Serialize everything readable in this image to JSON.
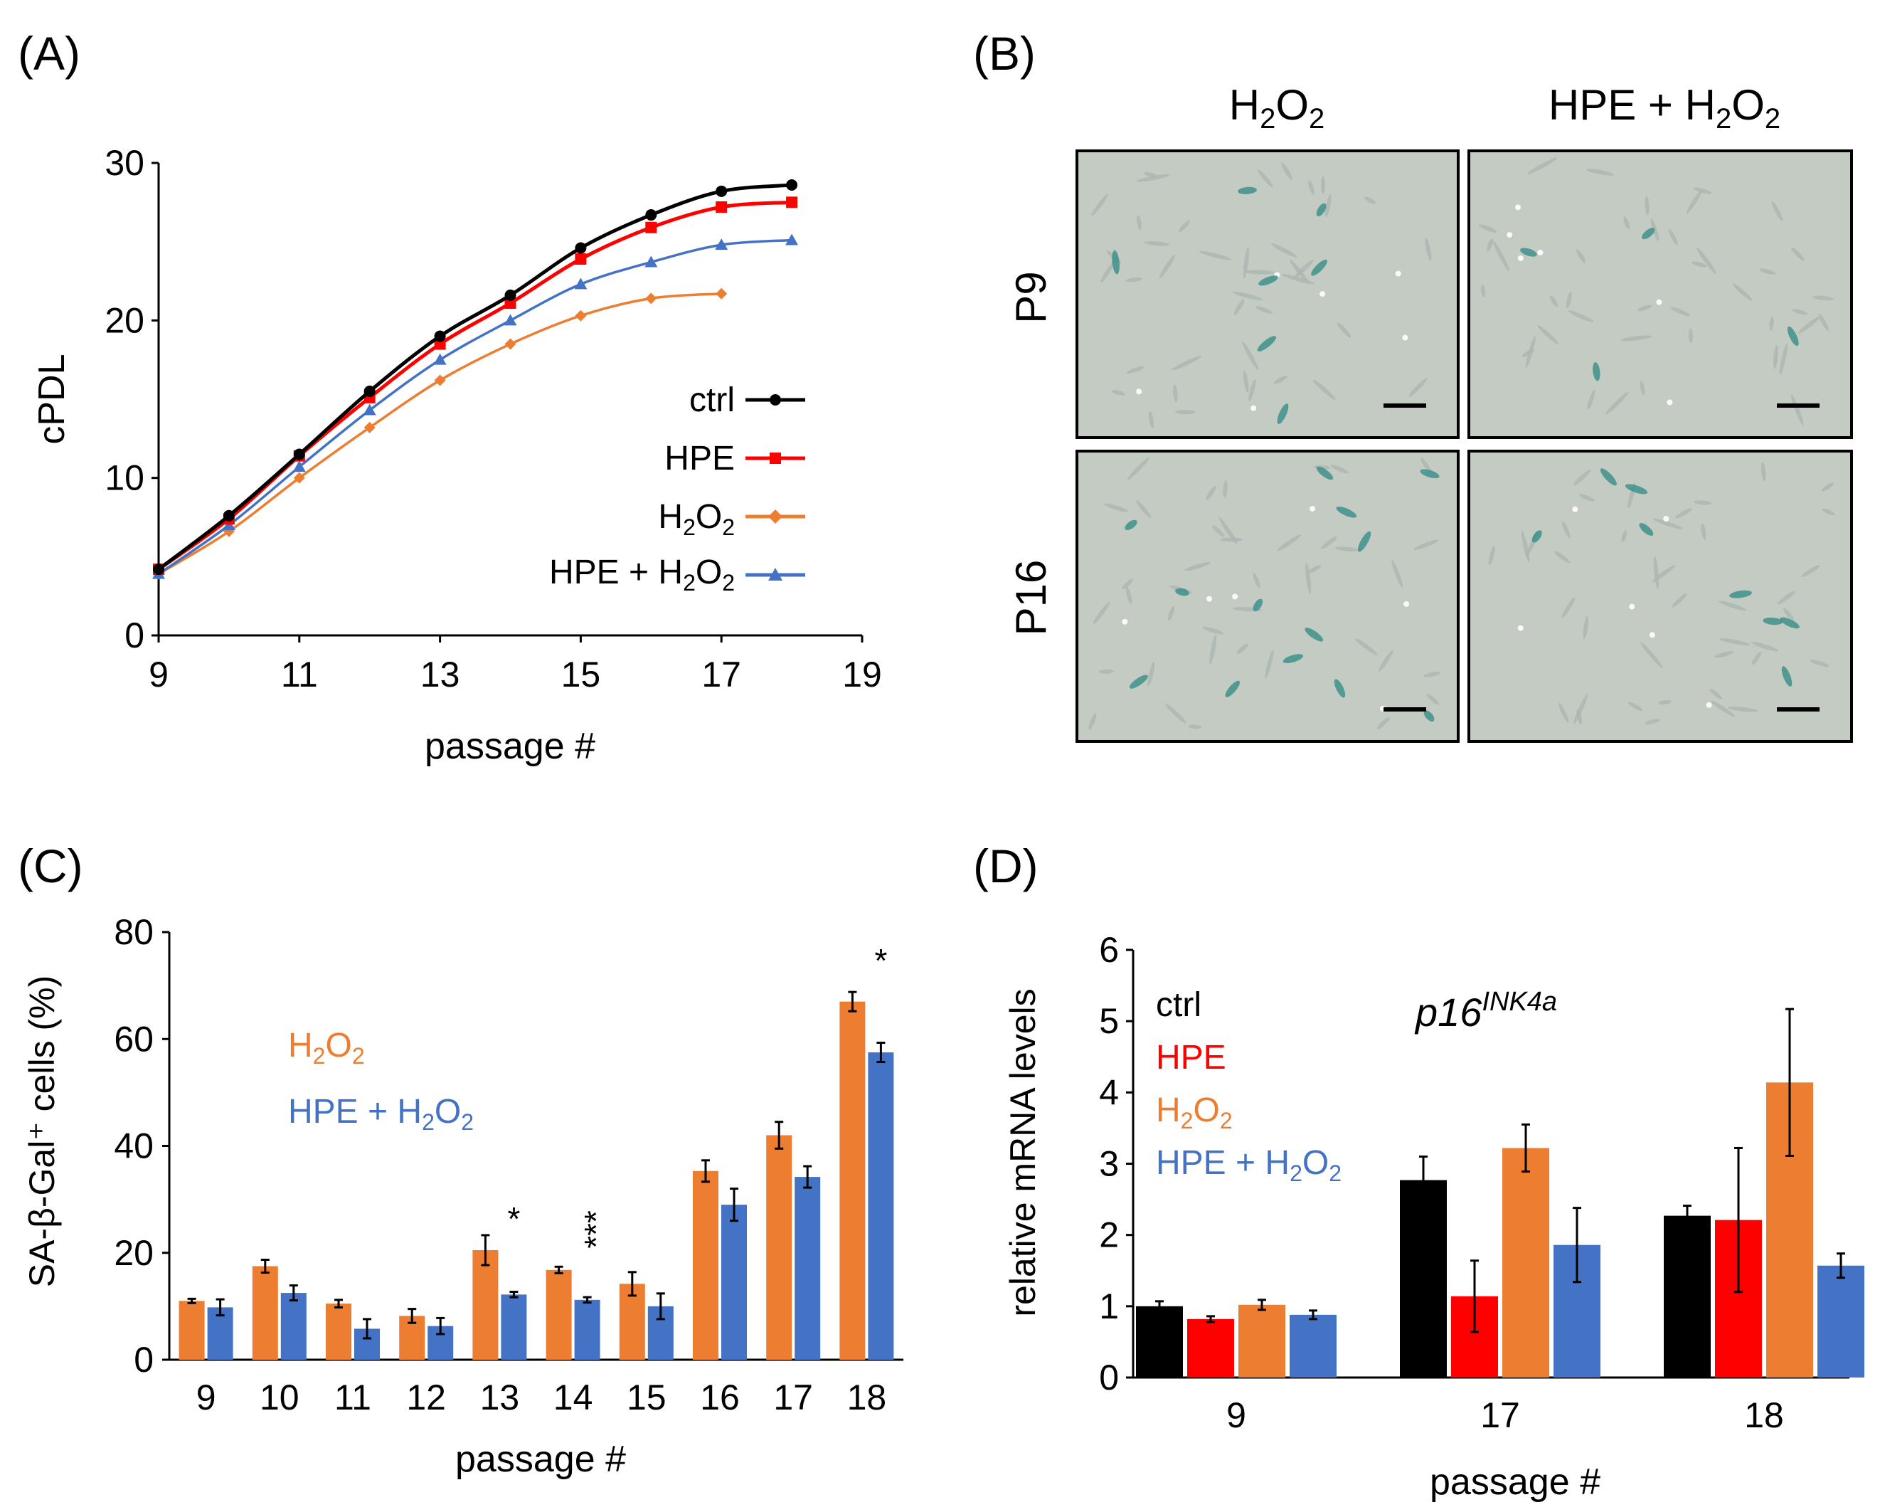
{
  "panels": {
    "A": {
      "label": "(A)",
      "chart_data": {
        "type": "line",
        "title": "",
        "xlabel": "passage #",
        "ylabel": "cPDL",
        "xlim": [
          9,
          19
        ],
        "ylim": [
          0,
          30
        ],
        "x_ticks": [
          "9",
          "11",
          "13",
          "15",
          "17",
          "19"
        ],
        "y_ticks": [
          "0",
          "10",
          "20",
          "30"
        ],
        "series": [
          {
            "name": "ctrl",
            "color": "#000000",
            "marker": "circle",
            "x": [
              9,
              10,
              11,
              12,
              13,
              14,
              15,
              16,
              17,
              18
            ],
            "y": [
              4.2,
              7.6,
              11.5,
              15.5,
              19.0,
              21.6,
              24.6,
              26.7,
              28.2,
              28.6
            ]
          },
          {
            "name": "HPE",
            "color": "#FF0000",
            "marker": "square",
            "x": [
              9,
              10,
              11,
              12,
              13,
              14,
              15,
              16,
              17,
              18
            ],
            "y": [
              4.2,
              7.4,
              11.4,
              15.1,
              18.5,
              21.1,
              23.9,
              25.9,
              27.2,
              27.5
            ]
          },
          {
            "name": "H2O2",
            "label_base": "H",
            "label_sub1": "2",
            "label_mid": "O",
            "label_sub2": "2",
            "color": "#ED7D31",
            "marker": "diamond",
            "x": [
              9,
              10,
              11,
              12,
              13,
              14,
              15,
              16,
              17
            ],
            "y": [
              3.9,
              6.6,
              10.0,
              13.2,
              16.2,
              18.5,
              20.3,
              21.4,
              21.7
            ]
          },
          {
            "name": "HPE + H2O2",
            "label_base": "HPE + H",
            "label_sub1": "2",
            "label_mid": "O",
            "label_sub2": "2",
            "color": "#4472C4",
            "marker": "triangle",
            "x": [
              9,
              10,
              11,
              12,
              13,
              14,
              15,
              16,
              17,
              18
            ],
            "y": [
              3.9,
              7.0,
              10.7,
              14.3,
              17.5,
              20.0,
              22.3,
              23.7,
              24.8,
              25.1
            ]
          }
        ],
        "legend_position": "right-lower"
      }
    },
    "B": {
      "label": "(B)",
      "col_headers": [
        {
          "base": "H",
          "sub1": "2",
          "mid": "O",
          "sub2": "2"
        },
        {
          "base": "HPE + H",
          "sub1": "2",
          "mid": "O",
          "sub2": "2"
        }
      ],
      "row_headers": [
        "P9",
        "P16"
      ],
      "micrographs": [
        "P9 H2O2 SA-β-Gal stain",
        "P9 HPE + H2O2 SA-β-Gal stain",
        "P16 H2O2 SA-β-Gal stain",
        "P16 HPE + H2O2 SA-β-Gal stain"
      ],
      "image_background": "#C4CBC2",
      "stain_color": "#2E8A84"
    },
    "C": {
      "label": "(C)",
      "chart_data": {
        "type": "bar",
        "title": "",
        "xlabel": "passage #",
        "ylabel": "SA-β-Gal⁺ cells (%)",
        "ylim": [
          0,
          80
        ],
        "y_ticks": [
          "0",
          "20",
          "40",
          "60",
          "80"
        ],
        "categories": [
          "9",
          "10",
          "11",
          "12",
          "13",
          "14",
          "15",
          "16",
          "17",
          "18"
        ],
        "series": [
          {
            "name": "H2O2",
            "color": "#ED7D31",
            "values": [
              11.0,
              17.5,
              10.5,
              8.2,
              20.5,
              16.8,
              14.2,
              35.3,
              42.0,
              67.0
            ],
            "errors": [
              0.4,
              1.2,
              0.7,
              1.3,
              2.8,
              0.6,
              2.2,
              2.0,
              2.5,
              1.8
            ]
          },
          {
            "name": "HPE + H2O2",
            "color": "#4472C4",
            "values": [
              9.8,
              12.5,
              5.8,
              6.3,
              12.2,
              11.2,
              10.0,
              29.0,
              34.2,
              57.5
            ],
            "errors": [
              1.5,
              1.4,
              1.8,
              1.5,
              0.5,
              0.5,
              2.4,
              3.0,
              2.0,
              1.8
            ]
          }
        ],
        "annotations": [
          {
            "category": "13",
            "text": "*"
          },
          {
            "category": "14",
            "text": "***"
          },
          {
            "category": "18",
            "text": "*"
          }
        ],
        "legend": [
          {
            "base": "H",
            "sub1": "2",
            "mid": "O",
            "sub2": "2",
            "color": "#ED7D31"
          },
          {
            "base": "HPE + H",
            "sub1": "2",
            "mid": "O",
            "sub2": "2",
            "color": "#4472C4"
          }
        ],
        "legend_position": "top-left"
      }
    },
    "D": {
      "label": "(D)",
      "chart_data": {
        "type": "bar",
        "title": "p16",
        "title_superscript": "INK4a",
        "xlabel": "passage #",
        "ylabel": "relative mRNA levels",
        "ylim": [
          0,
          6
        ],
        "y_ticks": [
          "0",
          "1",
          "2",
          "3",
          "4",
          "5",
          "6"
        ],
        "categories": [
          "9",
          "17",
          "18"
        ],
        "series": [
          {
            "name": "ctrl",
            "color": "#000000",
            "values": [
              1.0,
              2.77,
              2.27
            ],
            "errors": [
              0.07,
              0.33,
              0.14
            ]
          },
          {
            "name": "HPE",
            "color": "#FF0000",
            "values": [
              0.82,
              1.14,
              2.21
            ],
            "errors": [
              0.04,
              0.5,
              1.01
            ]
          },
          {
            "name": "H2O2",
            "color": "#ED7D31",
            "values": [
              1.02,
              3.22,
              4.14
            ],
            "errors": [
              0.07,
              0.33,
              1.03
            ]
          },
          {
            "name": "HPE + H2O2",
            "color": "#4472C4",
            "values": [
              0.88,
              1.86,
              1.57
            ],
            "errors": [
              0.06,
              0.52,
              0.17
            ]
          }
        ],
        "legend": [
          {
            "text": "ctrl",
            "color": "#000000"
          },
          {
            "text": "HPE",
            "color": "#FF0000"
          },
          {
            "base": "H",
            "sub1": "2",
            "mid": "O",
            "sub2": "2",
            "color": "#ED7D31"
          },
          {
            "base": "HPE + H",
            "sub1": "2",
            "mid": "O",
            "sub2": "2",
            "color": "#4472C4"
          }
        ],
        "legend_position": "top-left"
      }
    }
  }
}
